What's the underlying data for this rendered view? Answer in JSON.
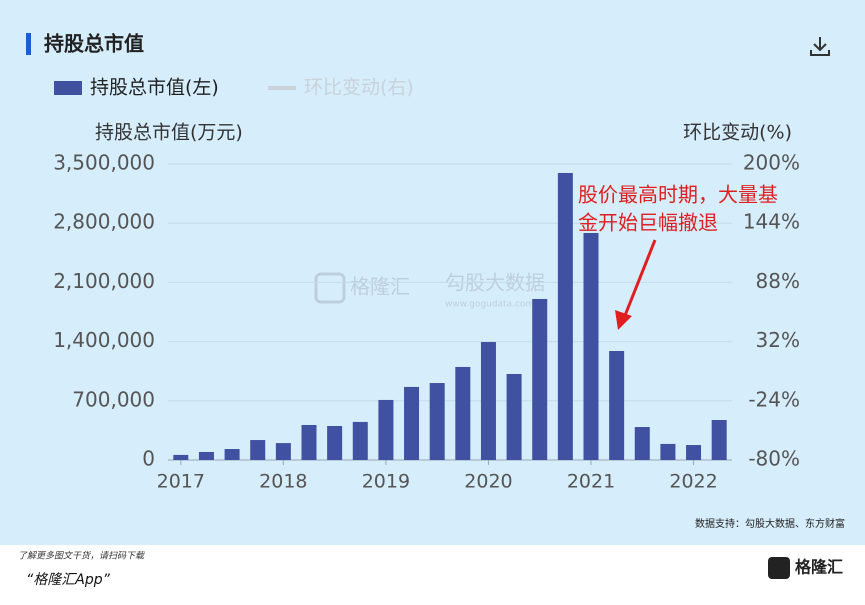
{
  "chart_data": {
    "type": "bar",
    "title": "持股总市值",
    "y_label": "持股总市值(万元)",
    "y2_label": "环比变动(%)",
    "categories": [
      "2017",
      null,
      null,
      null,
      "2018",
      null,
      null,
      null,
      "2019",
      null,
      null,
      null,
      "2020",
      null,
      null,
      null,
      "2021",
      null,
      null,
      null,
      "2022",
      null
    ],
    "series": [
      {
        "name": "持股总市值(左)",
        "color": "#3f51a0",
        "values": [
          60000,
          95000,
          130000,
          236000,
          200000,
          414000,
          402000,
          450000,
          710000,
          864000,
          910000,
          1100000,
          1395000,
          1017000,
          1904000,
          3394000,
          2684000,
          1289000,
          390000,
          190000,
          177000,
          473000
        ]
      }
    ],
    "hidden_series": [
      {
        "name": "环比变动(右)",
        "color": "#c9d2da",
        "axis": "y2"
      }
    ],
    "ylim": [
      0,
      3500000
    ],
    "yticks": [
      0,
      {
        "value": 700000,
        "label": "700,000"
      },
      {
        "value": 1400000,
        "label": "1,400,000"
      },
      {
        "value": 2100000,
        "label": "2,100,000"
      },
      {
        "value": 2800000,
        "label": "2,800,000"
      },
      {
        "value": 3500000,
        "label": "3,500,000"
      }
    ],
    "y2lim": [
      -80,
      200
    ],
    "y2ticks": [
      {
        "value": -80,
        "label": "-80%"
      },
      {
        "value": -24,
        "label": "-24%"
      },
      {
        "value": 32,
        "label": "32%"
      },
      {
        "value": 88,
        "label": "88%"
      },
      {
        "value": 144,
        "label": "144%"
      },
      {
        "value": 200,
        "label": "200%"
      }
    ],
    "grid": true,
    "annotation": [
      "股价最高时期，大量基",
      "金开始巨幅撤退"
    ],
    "watermark": [
      "格隆汇",
      "勾股大数据",
      "www.gogudata.com"
    ],
    "source": "数据支持：勾股大数据、东方财富"
  },
  "footer": {
    "note": "了解更多图文干货，请扫码下载",
    "app": "“格隆汇App”",
    "logo": "格隆汇"
  }
}
